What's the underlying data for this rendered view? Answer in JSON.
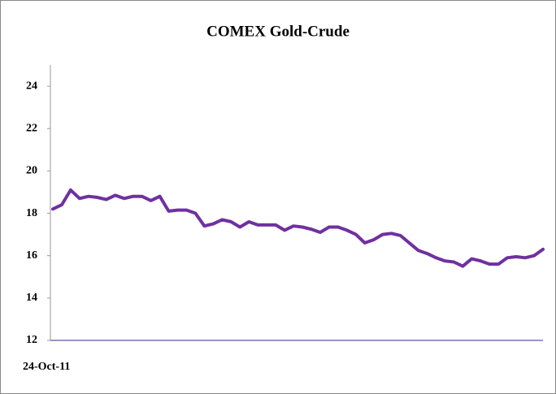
{
  "chart_data": {
    "type": "line",
    "title": "COMEX Gold-Crude",
    "categories": [
      "24-Oct-11",
      null,
      null,
      null,
      null,
      null,
      null,
      null,
      null,
      null,
      null,
      null,
      null,
      null,
      null,
      null,
      null,
      null,
      null,
      null,
      null,
      null,
      null,
      null,
      null,
      null,
      null,
      null,
      null,
      null,
      null,
      null,
      null,
      null,
      null,
      null,
      null,
      null,
      null,
      null,
      null,
      null,
      null,
      null,
      null,
      null,
      null,
      null,
      null,
      null,
      null,
      null,
      null,
      null,
      null,
      null
    ],
    "series": [
      {
        "name": "COMEX Gold-Crude",
        "color": "#7030a0",
        "values": [
          18.2,
          18.4,
          19.1,
          18.7,
          18.8,
          18.75,
          18.65,
          18.85,
          18.7,
          18.8,
          18.8,
          18.6,
          18.8,
          18.1,
          18.15,
          18.15,
          18.0,
          17.4,
          17.5,
          17.7,
          17.6,
          17.35,
          17.6,
          17.45,
          17.45,
          17.45,
          17.2,
          17.4,
          17.35,
          17.25,
          17.1,
          17.35,
          17.35,
          17.2,
          17.0,
          16.6,
          16.75,
          17.0,
          17.05,
          16.95,
          16.6,
          16.25,
          16.1,
          15.9,
          15.75,
          15.7,
          15.5,
          15.85,
          15.75,
          15.6,
          15.6,
          15.9,
          15.95,
          15.9,
          16.0,
          16.3
        ]
      }
    ],
    "ylim": [
      12,
      25
    ],
    "yticks": [
      12,
      14,
      16,
      18,
      20,
      22,
      24
    ]
  }
}
